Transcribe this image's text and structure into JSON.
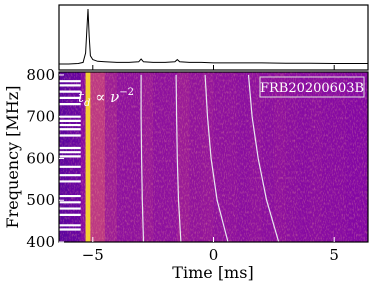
{
  "chart_data": {
    "type": "waterfall",
    "x_label": "Time [ms]",
    "y_label": "Frequency [MHz]",
    "label": "FRB20200603B",
    "dm_note": {
      "base": "t",
      "sub": "d",
      "mid": " ∝ ν",
      "sup": "−2"
    },
    "xlim": [
      -6.4,
      6.4
    ],
    "xticks": [
      {
        "value": -5,
        "label": "−5"
      },
      0,
      5
    ],
    "ylim": [
      400,
      807
    ],
    "yticks": [
      400,
      500,
      600,
      700,
      800
    ],
    "colormap": [
      "#0d0887",
      "#7e03a8",
      "#cc4778",
      "#f89540",
      "#f0f921"
    ],
    "heatmap": {
      "time_edges": [
        -6.4,
        -6,
        -5.5,
        -5.3,
        -5.1,
        -4.5,
        -4,
        -3.5,
        -3,
        -2.5,
        -2,
        -1.5,
        -1,
        -0.5,
        0,
        0.5,
        1,
        1.5,
        2,
        2.5,
        3,
        3.5,
        4,
        4.5,
        5,
        5.5,
        6,
        6.4
      ],
      "intensity": [
        0.18,
        0.2,
        0.28,
        0.9,
        0.45,
        0.35,
        0.3,
        0.3,
        0.33,
        0.3,
        0.3,
        0.34,
        0.31,
        0.32,
        0.3,
        0.3,
        0.29,
        0.3,
        0.29,
        0.3,
        0.29,
        0.28,
        0.29,
        0.28,
        0.28,
        0.27,
        0.27
      ]
    },
    "masked_channels": [
      785,
      775,
      760,
      745,
      730,
      700,
      690,
      680,
      670,
      655,
      625,
      615,
      605,
      580,
      560,
      545,
      510,
      495,
      480,
      465,
      440,
      430
    ],
    "profile": {
      "x": [
        -6.4,
        -6,
        -5.6,
        -5.4,
        -5.3,
        -5.25,
        -5.2,
        -5.15,
        -5.1,
        -5.0,
        -4.8,
        -4.5,
        -4,
        -3.5,
        -3.1,
        -3.0,
        -2.9,
        -2.5,
        -2,
        -1.6,
        -1.5,
        -1.4,
        -1,
        -0.5,
        0,
        1,
        2,
        3,
        4,
        5,
        6,
        6.4
      ],
      "values": [
        0,
        0,
        0.01,
        0.03,
        0.2,
        0.6,
        1,
        0.5,
        0.15,
        0.08,
        0.05,
        0.04,
        0.03,
        0.03,
        0.04,
        0.09,
        0.04,
        0.03,
        0.03,
        0.04,
        0.08,
        0.04,
        0.03,
        0.03,
        0.02,
        0.02,
        0.02,
        0.015,
        0.015,
        0.01,
        0.01,
        0.01
      ],
      "color": "#000000"
    },
    "curves": [
      {
        "freq": [
          800,
          700,
          600,
          500,
          400
        ],
        "time": [
          -3.0,
          -3.0,
          -2.98,
          -2.95,
          -2.9
        ],
        "color": "#e8e8f0"
      },
      {
        "freq": [
          800,
          700,
          600,
          500,
          400
        ],
        "time": [
          -1.55,
          -1.53,
          -1.5,
          -1.45,
          -1.35
        ],
        "color": "#e8e8f0"
      },
      {
        "freq": [
          800,
          700,
          600,
          500,
          400
        ],
        "time": [
          -0.35,
          -0.25,
          -0.1,
          0.15,
          0.6
        ],
        "color": "#e8e8f0"
      },
      {
        "freq": [
          800,
          700,
          600,
          500,
          400
        ],
        "time": [
          1.45,
          1.6,
          1.85,
          2.2,
          2.7
        ],
        "color": "#e8e8f0"
      }
    ]
  }
}
